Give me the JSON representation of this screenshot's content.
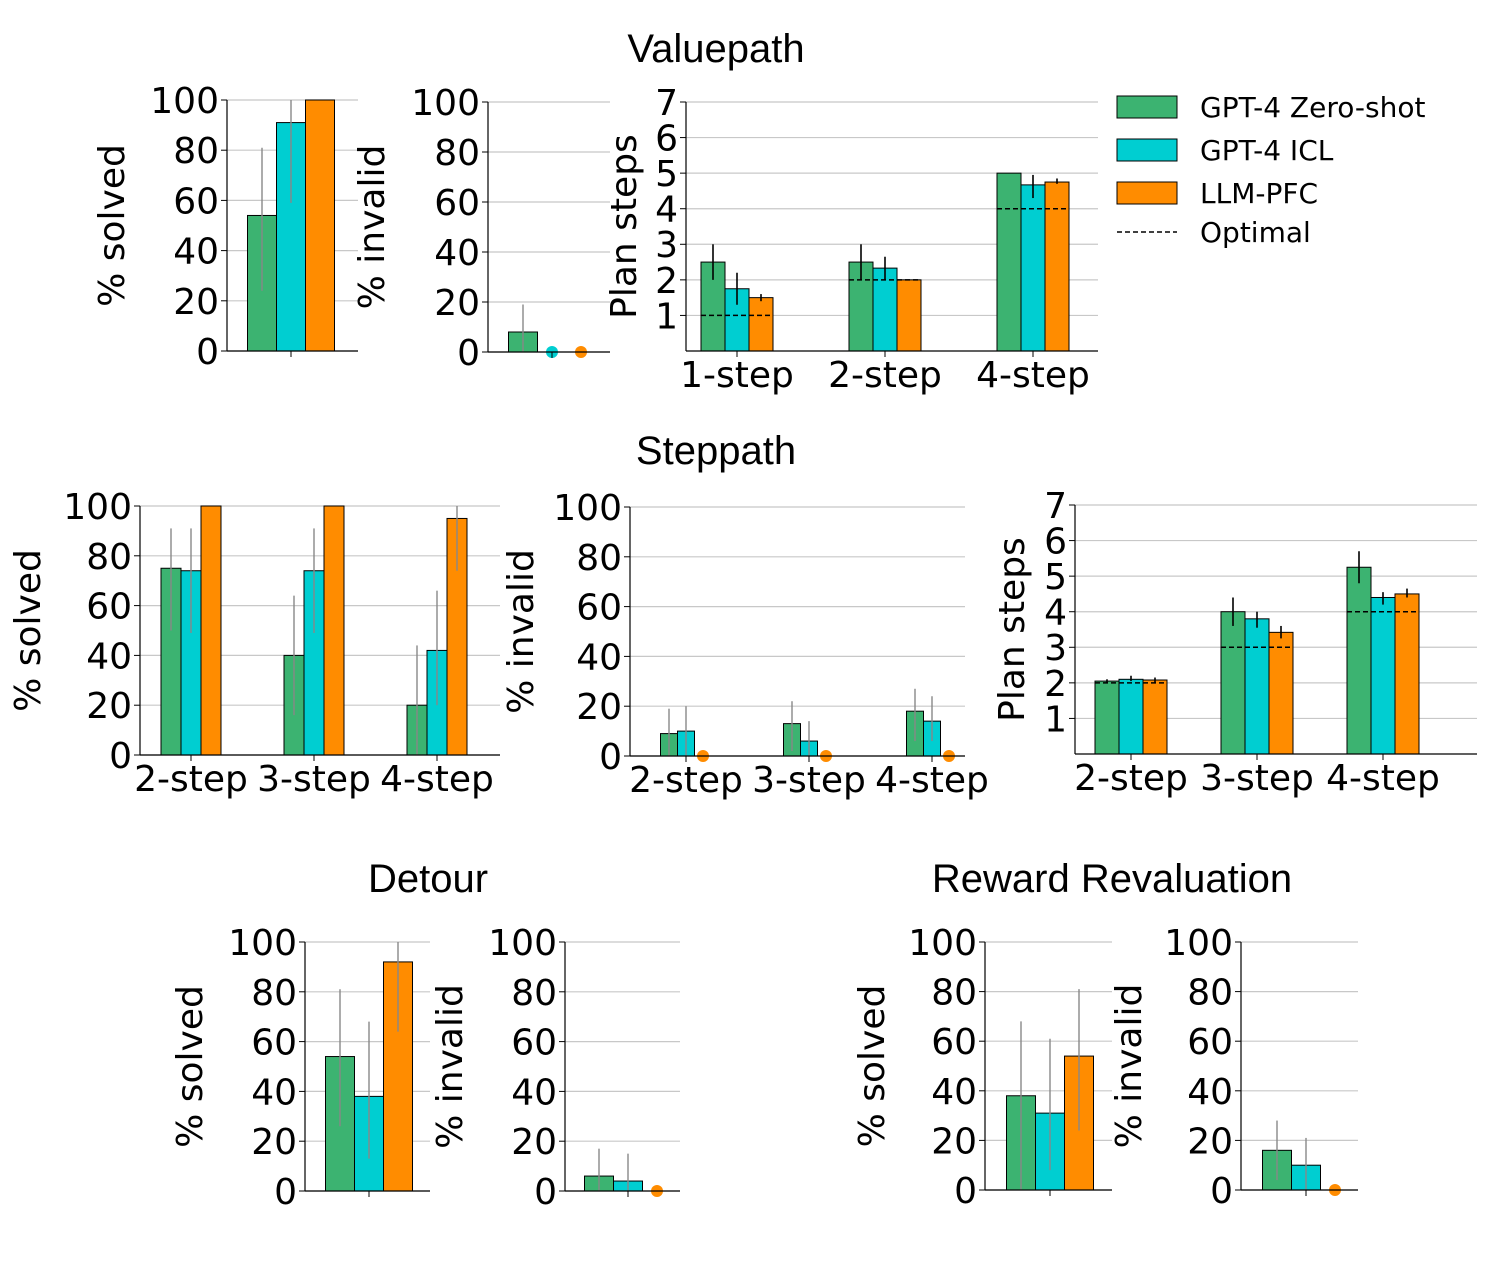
{
  "colors": {
    "zero_shot": "#3cb371",
    "icl": "#00ced1",
    "llm_pfc": "#ff8c00",
    "grid": "#c8c8c8",
    "error_bar_light": "#888888",
    "error_bar_dark": "#000000"
  },
  "legend": {
    "placement": "top-right",
    "entries": [
      "GPT-4 Zero-shot",
      "GPT-4 ICL",
      "LLM-PFC",
      "Optimal"
    ]
  },
  "sections": {
    "valuepath": "Valuepath",
    "steppath": "Steppath",
    "detour": "Detour",
    "reward_revaluation": "Reward Revaluation"
  },
  "chart_data": [
    {
      "id": "vp_solved",
      "section": "Valuepath",
      "type": "bar",
      "ylabel": "% solved",
      "ylim": [
        0,
        100
      ],
      "yticks": [
        0,
        20,
        40,
        60,
        80,
        100
      ],
      "categories": [
        ""
      ],
      "series": [
        {
          "name": "GPT-4 Zero-shot",
          "values": [
            54
          ],
          "err": [
            [
              24,
              81
            ]
          ]
        },
        {
          "name": "GPT-4 ICL",
          "values": [
            91
          ],
          "err": [
            [
              59,
              100
            ]
          ]
        },
        {
          "name": "LLM-PFC",
          "values": [
            100
          ],
          "err": [
            null
          ]
        }
      ],
      "grid": true
    },
    {
      "id": "vp_invalid",
      "section": "Valuepath",
      "type": "bar",
      "ylabel": "% invalid",
      "ylim": [
        0,
        100
      ],
      "yticks": [
        0,
        20,
        40,
        60,
        80,
        100
      ],
      "categories": [
        ""
      ],
      "series": [
        {
          "name": "GPT-4 Zero-shot",
          "values": [
            8
          ],
          "err": [
            [
              0,
              19
            ]
          ]
        },
        {
          "name": "GPT-4 ICL",
          "values": [
            0
          ],
          "err": [
            null
          ]
        },
        {
          "name": "LLM-PFC",
          "values": [
            0
          ],
          "err": [
            null
          ]
        }
      ],
      "zero_markers": true,
      "grid": true
    },
    {
      "id": "vp_steps",
      "section": "Valuepath",
      "type": "bar",
      "ylabel": "Plan steps",
      "ylim": [
        0,
        7
      ],
      "yticks": [
        1,
        2,
        3,
        4,
        5,
        6,
        7
      ],
      "categories": [
        "1-step",
        "2-step",
        "4-step"
      ],
      "series": [
        {
          "name": "GPT-4 Zero-shot",
          "values": [
            2.5,
            2.5,
            5.0
          ],
          "err": [
            [
              2.0,
              3.0
            ],
            [
              2.0,
              3.0
            ],
            null
          ]
        },
        {
          "name": "GPT-4 ICL",
          "values": [
            1.75,
            2.33,
            4.67
          ],
          "err": [
            [
              1.3,
              2.2
            ],
            [
              2.0,
              2.65
            ],
            [
              4.3,
              4.95
            ]
          ]
        },
        {
          "name": "LLM-PFC",
          "values": [
            1.5,
            2.0,
            4.75
          ],
          "err": [
            [
              1.4,
              1.6
            ],
            null,
            [
              4.7,
              4.85
            ]
          ]
        }
      ],
      "optimal": [
        1,
        2,
        4
      ],
      "grid": true
    },
    {
      "id": "sp_solved",
      "section": "Steppath",
      "type": "bar",
      "ylabel": "% solved",
      "ylim": [
        0,
        100
      ],
      "yticks": [
        0,
        20,
        40,
        60,
        80,
        100
      ],
      "categories": [
        "2-step",
        "3-step",
        "4-step"
      ],
      "series": [
        {
          "name": "GPT-4 Zero-shot",
          "values": [
            75,
            40,
            20
          ],
          "err": [
            [
              50,
              91
            ],
            [
              16,
              64
            ],
            [
              0,
              44
            ]
          ]
        },
        {
          "name": "GPT-4 ICL",
          "values": [
            74,
            74,
            42
          ],
          "err": [
            [
              49,
              91
            ],
            [
              49,
              91
            ],
            [
              20,
              66
            ]
          ]
        },
        {
          "name": "LLM-PFC",
          "values": [
            100,
            100,
            95
          ],
          "err": [
            null,
            null,
            [
              74,
              100
            ]
          ]
        }
      ],
      "grid": true
    },
    {
      "id": "sp_invalid",
      "section": "Steppath",
      "type": "bar",
      "ylabel": "% invalid",
      "ylim": [
        0,
        100
      ],
      "yticks": [
        0,
        20,
        40,
        60,
        80,
        100
      ],
      "categories": [
        "2-step",
        "3-step",
        "4-step"
      ],
      "series": [
        {
          "name": "GPT-4 Zero-shot",
          "values": [
            9,
            13,
            18
          ],
          "err": [
            [
              0,
              19
            ],
            [
              2,
              22
            ],
            [
              6,
              27
            ]
          ]
        },
        {
          "name": "GPT-4 ICL",
          "values": [
            10,
            6,
            14
          ],
          "err": [
            [
              0,
              20
            ],
            [
              0,
              14
            ],
            [
              6,
              24
            ]
          ]
        },
        {
          "name": "LLM-PFC",
          "values": [
            0,
            0,
            0
          ],
          "err": [
            null,
            null,
            null
          ]
        }
      ],
      "zero_markers": true,
      "grid": true
    },
    {
      "id": "sp_steps",
      "section": "Steppath",
      "type": "bar",
      "ylabel": "Plan steps",
      "ylim": [
        0,
        7
      ],
      "yticks": [
        1,
        2,
        3,
        4,
        5,
        6,
        7
      ],
      "categories": [
        "2-step",
        "3-step",
        "4-step"
      ],
      "series": [
        {
          "name": "GPT-4 Zero-shot",
          "values": [
            2.05,
            4.0,
            5.25
          ],
          "err": [
            [
              2.0,
              2.1
            ],
            [
              3.6,
              4.4
            ],
            [
              4.8,
              5.7
            ]
          ]
        },
        {
          "name": "GPT-4 ICL",
          "values": [
            2.1,
            3.8,
            4.4
          ],
          "err": [
            [
              2.05,
              2.2
            ],
            [
              3.55,
              4.0
            ],
            [
              4.2,
              4.55
            ]
          ]
        },
        {
          "name": "LLM-PFC",
          "values": [
            2.08,
            3.42,
            4.5
          ],
          "err": [
            [
              2.0,
              2.15
            ],
            [
              3.25,
              3.6
            ],
            [
              4.4,
              4.65
            ]
          ]
        }
      ],
      "optimal": [
        2,
        3,
        4
      ],
      "grid": true
    },
    {
      "id": "dt_solved",
      "section": "Detour",
      "type": "bar",
      "ylabel": "% solved",
      "ylim": [
        0,
        100
      ],
      "yticks": [
        0,
        20,
        40,
        60,
        80,
        100
      ],
      "categories": [
        ""
      ],
      "series": [
        {
          "name": "GPT-4 Zero-shot",
          "values": [
            54
          ],
          "err": [
            [
              26,
              81
            ]
          ]
        },
        {
          "name": "GPT-4 ICL",
          "values": [
            38
          ],
          "err": [
            [
              13,
              68
            ]
          ]
        },
        {
          "name": "LLM-PFC",
          "values": [
            92
          ],
          "err": [
            [
              64,
              100
            ]
          ]
        }
      ],
      "grid": true
    },
    {
      "id": "dt_invalid",
      "section": "Detour",
      "type": "bar",
      "ylabel": "% invalid",
      "ylim": [
        0,
        100
      ],
      "yticks": [
        0,
        20,
        40,
        60,
        80,
        100
      ],
      "categories": [
        ""
      ],
      "series": [
        {
          "name": "GPT-4 Zero-shot",
          "values": [
            6
          ],
          "err": [
            [
              0,
              17
            ]
          ]
        },
        {
          "name": "GPT-4 ICL",
          "values": [
            4
          ],
          "err": [
            [
              0,
              15
            ]
          ]
        },
        {
          "name": "LLM-PFC",
          "values": [
            0
          ],
          "err": [
            null
          ]
        }
      ],
      "zero_markers": true,
      "grid": true
    },
    {
      "id": "rr_solved",
      "section": "Reward Revaluation",
      "type": "bar",
      "ylabel": "% solved",
      "ylim": [
        0,
        100
      ],
      "yticks": [
        0,
        20,
        40,
        60,
        80,
        100
      ],
      "categories": [
        ""
      ],
      "series": [
        {
          "name": "GPT-4 Zero-shot",
          "values": [
            38
          ],
          "err": [
            [
              0,
              68
            ]
          ]
        },
        {
          "name": "GPT-4 ICL",
          "values": [
            31
          ],
          "err": [
            [
              8,
              61
            ]
          ]
        },
        {
          "name": "LLM-PFC",
          "values": [
            54
          ],
          "err": [
            [
              24,
              81
            ]
          ]
        }
      ],
      "grid": true
    },
    {
      "id": "rr_invalid",
      "section": "Reward Revaluation",
      "type": "bar",
      "ylabel": "% invalid",
      "ylim": [
        0,
        100
      ],
      "yticks": [
        0,
        20,
        40,
        60,
        80,
        100
      ],
      "categories": [
        ""
      ],
      "series": [
        {
          "name": "GPT-4 Zero-shot",
          "values": [
            16
          ],
          "err": [
            [
              4,
              28
            ]
          ]
        },
        {
          "name": "GPT-4 ICL",
          "values": [
            10
          ],
          "err": [
            [
              0,
              21
            ]
          ]
        },
        {
          "name": "LLM-PFC",
          "values": [
            0
          ],
          "err": [
            null
          ]
        }
      ],
      "zero_markers": true,
      "grid": true
    }
  ]
}
